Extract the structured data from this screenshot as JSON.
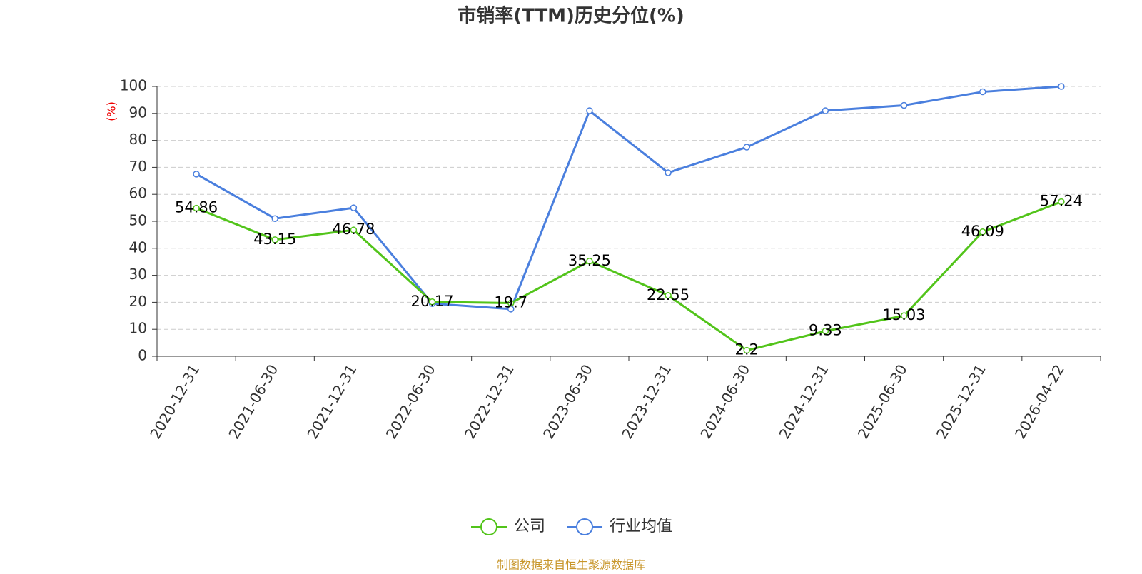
{
  "chart_data": {
    "type": "line",
    "title": "市销率(TTM)历史分位(%)",
    "y_label": "(%)",
    "categories": [
      "2020-12-31",
      "2021-06-30",
      "2021-12-31",
      "2022-06-30",
      "2022-12-31",
      "2023-06-30",
      "2023-12-31",
      "2024-06-30",
      "2024-12-31",
      "2025-06-30",
      "2025-12-31",
      "2026-04-22"
    ],
    "series": [
      {
        "name": "公司",
        "color": "#52c41a",
        "show_labels": true,
        "values": [
          54.86,
          43.15,
          46.78,
          20.17,
          19.7,
          35.25,
          22.55,
          2.2,
          9.33,
          15.03,
          46.09,
          57.24
        ]
      },
      {
        "name": "行业均值",
        "color": "#4a7fde",
        "show_labels": false,
        "values": [
          67.5,
          51,
          55,
          19.5,
          17.5,
          91,
          68,
          77.5,
          91,
          93,
          98,
          100
        ]
      }
    ],
    "ylim": [
      0,
      100
    ],
    "yticks": [
      0,
      10,
      20,
      30,
      40,
      50,
      60,
      70,
      80,
      90,
      100
    ],
    "grid": true,
    "legend": "bottom",
    "source": "制图数据来自恒生聚源数据库"
  }
}
